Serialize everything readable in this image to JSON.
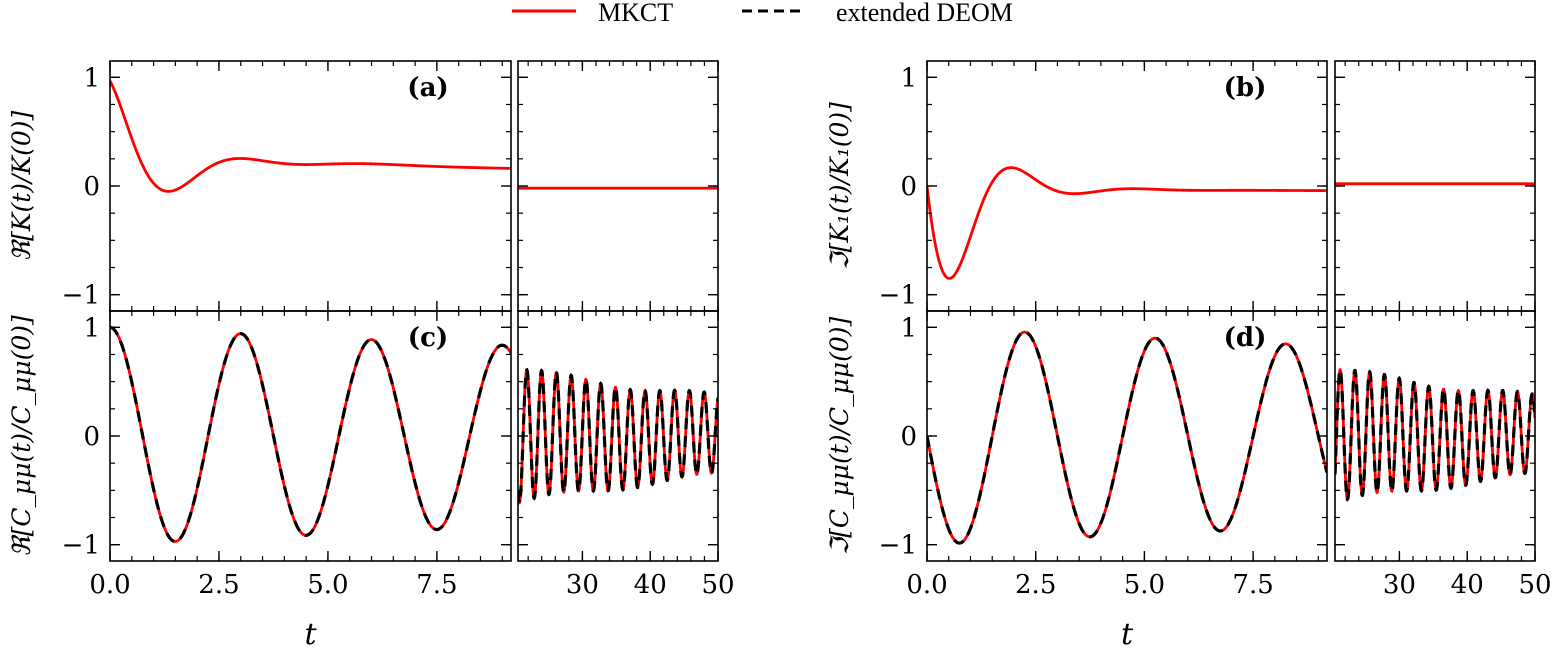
{
  "chart_data": {
    "type": "line",
    "legend": {
      "placement": "top-center",
      "entries": [
        {
          "label": "MKCT",
          "color": "#ff0000",
          "style": "solid"
        },
        {
          "label": "extended DEOM",
          "color": "#000000",
          "style": "dashed"
        }
      ]
    },
    "xlabel": "t",
    "panels": [
      {
        "id": "a",
        "label": "(a)",
        "ylabel": "ℜ[K(t)/K(0)]",
        "ylim": [
          -1.15,
          1.15
        ],
        "yticks": [
          -1,
          0,
          1
        ],
        "ytick_labels": [
          "−1",
          "0",
          "1"
        ],
        "left": {
          "xlim": [
            0,
            9.2
          ],
          "xticks": [
            0,
            2.5,
            5,
            7.5
          ],
          "xtick_labels": [
            "0.0",
            "2.5",
            "5.0",
            "7.5"
          ]
        },
        "right": {
          "xlim": [
            20.5,
            50
          ],
          "xticks": [
            30,
            40,
            50
          ],
          "xtick_labels": [
            "30",
            "40",
            "50"
          ]
        },
        "series": [
          {
            "name": "MKCT",
            "curve": {
              "kind": "damped_osc",
              "params": [
                [
                  0.82,
                  2.0,
                  0.9,
                  0.0
                ],
                [
                  0.18,
                  0.0,
                  0.0,
                  0.0
                ]
              ],
              "right_offset": -0.02
            }
          }
        ]
      },
      {
        "id": "b",
        "label": "(b)",
        "ylabel": "ℑ[K₁(t)/K₁(0)]",
        "ylim": [
          -1.15,
          1.15
        ],
        "yticks": [
          -1,
          0,
          1
        ],
        "ytick_labels": [
          "−1",
          "0",
          "1"
        ],
        "left": {
          "xlim": [
            0,
            9.2
          ],
          "xticks": [
            0,
            2.5,
            5,
            7.5
          ],
          "xtick_labels": [
            "0.0",
            "2.5",
            "5.0",
            "7.5"
          ]
        },
        "right": {
          "xlim": [
            20.5,
            50
          ],
          "xticks": [
            30,
            40,
            50
          ],
          "xtick_labels": [
            "30",
            "40",
            "50"
          ]
        },
        "series": [
          {
            "name": "MKCT",
            "curve": {
              "kind": "damped_sin",
              "params": [
                [
                  -1.6,
                  2.2,
                  1.05
                ]
              ],
              "tail": -0.045,
              "right_offset": 0.02
            }
          }
        ]
      },
      {
        "id": "c",
        "label": "(c)",
        "ylabel": "ℜ[C_μμ(t)/C_μμ(0)]",
        "ylim": [
          -1.15,
          1.15
        ],
        "yticks": [
          -1,
          0,
          1
        ],
        "ytick_labels": [
          "−1",
          "0",
          "1"
        ],
        "left": {
          "xlim": [
            0,
            9.2
          ],
          "xticks": [
            0,
            2.5,
            5,
            7.5
          ],
          "xtick_labels": [
            "0.0",
            "2.5",
            "5.0",
            "7.5"
          ]
        },
        "right": {
          "xlim": [
            20.5,
            50
          ],
          "xticks": [
            30,
            40,
            50
          ],
          "xtick_labels": [
            "30",
            "40",
            "50"
          ]
        },
        "series": [
          {
            "name": "MKCT",
            "curve": {
              "kind": "cos_decay",
              "omega": 2.094,
              "decay": 0.02
            }
          },
          {
            "name": "extended DEOM",
            "curve": {
              "kind": "cos_decay",
              "omega": 2.094,
              "decay": 0.02
            }
          }
        ]
      },
      {
        "id": "d",
        "label": "(d)",
        "ylabel": "ℑ[C_μμ(t)/C_μμ(0)]",
        "ylim": [
          -1.15,
          1.15
        ],
        "yticks": [
          -1,
          0,
          1
        ],
        "ytick_labels": [
          "−1",
          "0",
          "1"
        ],
        "left": {
          "xlim": [
            0,
            9.2
          ],
          "xticks": [
            0,
            2.5,
            5,
            7.5
          ],
          "xtick_labels": [
            "0.0",
            "2.5",
            "5.0",
            "7.5"
          ]
        },
        "right": {
          "xlim": [
            20.5,
            50
          ],
          "xticks": [
            30,
            40,
            50
          ],
          "xtick_labels": [
            "30",
            "40",
            "50"
          ]
        },
        "series": [
          {
            "name": "MKCT",
            "curve": {
              "kind": "neg_sin_decay",
              "omega": 2.094,
              "decay": 0.02
            }
          },
          {
            "name": "extended DEOM",
            "curve": {
              "kind": "neg_sin_decay",
              "omega": 2.094,
              "decay": 0.02
            }
          }
        ]
      }
    ]
  }
}
